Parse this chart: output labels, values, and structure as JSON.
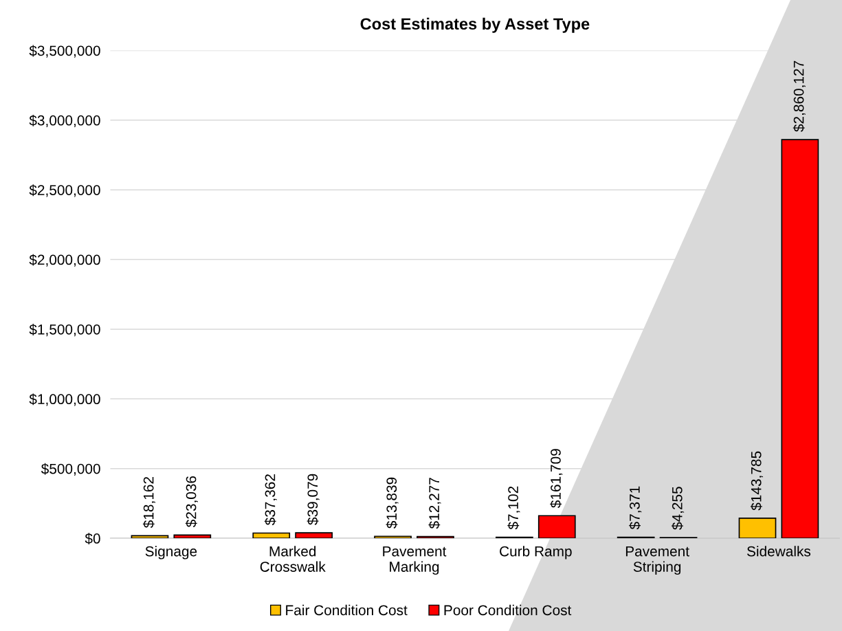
{
  "chart_data": {
    "type": "bar",
    "title": "Cost Estimates by Asset Type",
    "categories": [
      "Signage",
      "Marked\nCrosswalk",
      "Pavement\nMarking",
      "Curb Ramp",
      "Pavement\nStriping",
      "Sidewalks"
    ],
    "series": [
      {
        "name": "Fair Condition Cost",
        "color": "#ffc000",
        "values": [
          18162,
          37362,
          13839,
          7102,
          7371,
          143785
        ],
        "value_labels": [
          "$18,162",
          "$37,362",
          "$13,839",
          "$7,102",
          "$7,371",
          "$143,785"
        ]
      },
      {
        "name": "Poor Condition Cost",
        "color": "#ff0000",
        "values": [
          23036,
          39079,
          12277,
          161709,
          4255,
          2860127
        ],
        "value_labels": [
          "$23,036",
          "$39,079",
          "$12,277",
          "$161,709",
          "$4,255",
          "$2,860,127"
        ]
      }
    ],
    "ylim": [
      0,
      3500000
    ],
    "yticks": [
      {
        "value": 0,
        "label": "$0"
      },
      {
        "value": 500000,
        "label": "$500,000"
      },
      {
        "value": 1000000,
        "label": "$1,000,000"
      },
      {
        "value": 1500000,
        "label": "$1,500,000"
      },
      {
        "value": 2000000,
        "label": "$2,000,000"
      },
      {
        "value": 2500000,
        "label": "$2,500,000"
      },
      {
        "value": 3000000,
        "label": "$3,000,000"
      },
      {
        "value": 3500000,
        "label": "$3,500,000"
      }
    ],
    "grid": "y",
    "legend": "bottom"
  }
}
